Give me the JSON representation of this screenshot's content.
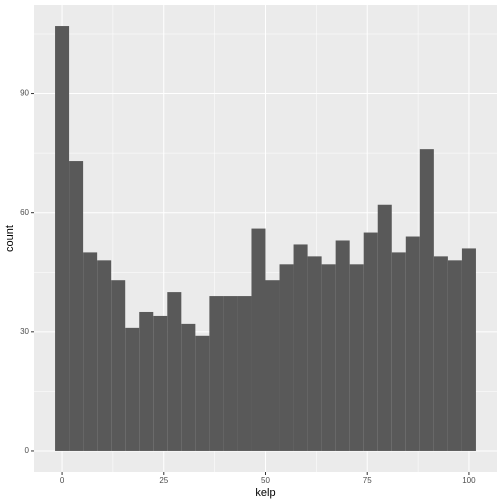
{
  "chart_data": {
    "type": "histogram",
    "x_label": "kelp",
    "y_label": "count",
    "bins": [
      -1.724,
      1.724,
      5.172,
      8.621,
      12.069,
      15.517,
      18.966,
      22.414,
      25.862,
      29.31,
      32.759,
      36.207,
      39.655,
      43.103,
      46.552,
      50,
      53.448,
      56.897,
      60.345,
      63.793,
      67.241,
      70.69,
      74.138,
      77.586,
      81.034,
      84.483,
      87.931,
      91.379,
      94.828,
      98.276,
      101.724
    ],
    "values": [
      107,
      73,
      50,
      48,
      43,
      31,
      35,
      34,
      40,
      32,
      29,
      39,
      39,
      39,
      56,
      43,
      47,
      52,
      49,
      47,
      53,
      47,
      55,
      62,
      50,
      54,
      76,
      49,
      48,
      51
    ],
    "color": "#595959",
    "xlim": [
      -6.9,
      106.9
    ],
    "xticks": [
      0,
      25,
      50,
      75,
      100
    ],
    "ylim": [
      -5.3,
      112.3
    ],
    "yticks": [
      0,
      30,
      60,
      90
    ],
    "grid": true
  }
}
